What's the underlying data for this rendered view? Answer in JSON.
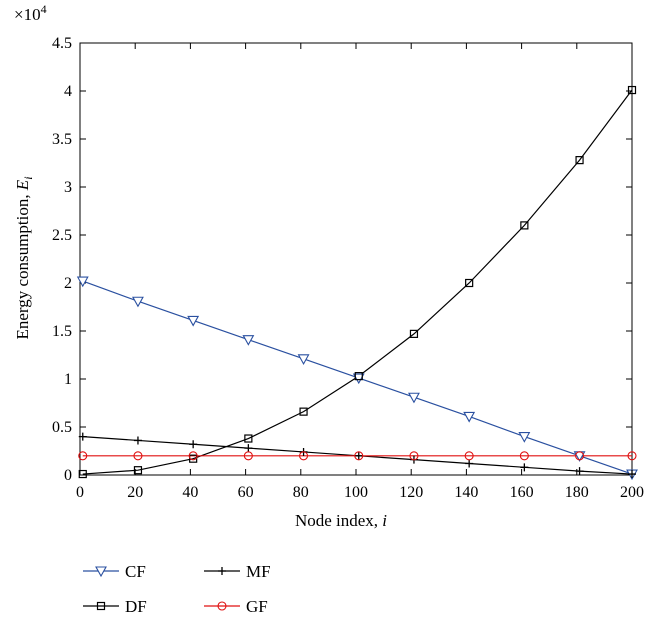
{
  "chart_data": {
    "type": "line",
    "title": "",
    "xlabel": "Node index, ",
    "xlabel_var": "i",
    "ylabel": "Energy consumption, ",
    "ylabel_var": "E",
    "ylabel_sub": "i",
    "y_multiplier": "×10",
    "y_multiplier_exp": "4",
    "xlim": [
      0,
      200
    ],
    "ylim": [
      0,
      4.5
    ],
    "xticks": [
      0,
      20,
      40,
      60,
      80,
      100,
      120,
      140,
      160,
      180,
      200
    ],
    "yticks": [
      0,
      0.5,
      1,
      1.5,
      2,
      2.5,
      3,
      3.5,
      4,
      4.5
    ],
    "ytick_labels": [
      "0",
      "0.5",
      "1",
      "1.5",
      "2",
      "2.5",
      "3",
      "3.5",
      "4",
      "4.5"
    ],
    "grid": false,
    "legend_position": "bottom",
    "x": [
      1,
      21,
      41,
      61,
      81,
      101,
      121,
      141,
      161,
      181,
      200
    ],
    "series": [
      {
        "name": "CF",
        "color": "#2a50a0",
        "marker": "triangle-down",
        "values": [
          2.02,
          1.81,
          1.61,
          1.41,
          1.21,
          1.01,
          0.81,
          0.61,
          0.4,
          0.2,
          0.01
        ]
      },
      {
        "name": "MF",
        "color": "#000000",
        "marker": "plus",
        "values": [
          0.4,
          0.36,
          0.32,
          0.28,
          0.24,
          0.2,
          0.16,
          0.12,
          0.08,
          0.04,
          0.01
        ]
      },
      {
        "name": "DF",
        "color": "#000000",
        "marker": "square",
        "values": [
          0.01,
          0.05,
          0.17,
          0.38,
          0.66,
          1.03,
          1.47,
          2.0,
          2.6,
          3.28,
          4.01
        ]
      },
      {
        "name": "GF",
        "color": "#e01010",
        "marker": "circle",
        "values": [
          0.2,
          0.2,
          0.2,
          0.2,
          0.2,
          0.2,
          0.2,
          0.2,
          0.2,
          0.2,
          0.2
        ]
      }
    ]
  }
}
